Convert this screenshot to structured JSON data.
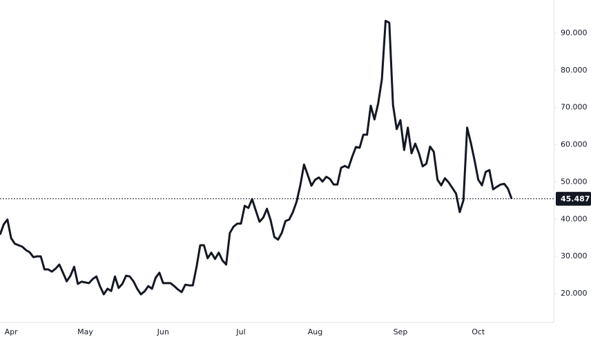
{
  "chart_data": {
    "type": "line",
    "categories": [
      null,
      null,
      null,
      "Apr",
      null,
      null,
      null,
      null,
      null,
      null,
      null,
      null,
      null,
      null,
      null,
      null,
      null,
      null,
      null,
      null,
      null,
      null,
      null,
      "May",
      null,
      null,
      null,
      null,
      null,
      null,
      null,
      null,
      null,
      null,
      null,
      null,
      null,
      null,
      null,
      null,
      null,
      null,
      null,
      null,
      "Jun",
      null,
      null,
      null,
      null,
      null,
      null,
      null,
      null,
      null,
      null,
      null,
      null,
      null,
      null,
      null,
      null,
      null,
      null,
      null,
      null,
      "Jul",
      null,
      null,
      null,
      null,
      null,
      null,
      null,
      null,
      null,
      null,
      null,
      null,
      null,
      null,
      null,
      null,
      null,
      null,
      null,
      "Aug",
      null,
      null,
      null,
      null,
      null,
      null,
      null,
      null,
      null,
      null,
      null,
      null,
      null,
      null,
      null,
      null,
      null,
      null,
      null,
      null,
      null,
      null,
      "Sep",
      null,
      null,
      null,
      null,
      null,
      null,
      null,
      null,
      null,
      null,
      null,
      null,
      null,
      null,
      null,
      null,
      null,
      null,
      null,
      null,
      "Oct",
      null,
      null,
      null,
      null,
      null,
      null,
      null,
      null,
      null
    ],
    "series": [
      {
        "color": "#131722",
        "values": [
          35.8,
          38.6,
          39.9,
          34.9,
          33.4,
          33,
          32.6,
          31.7,
          31.1,
          29.8,
          30,
          30,
          26.5,
          26.5,
          25.9,
          26.7,
          27.8,
          25.6,
          23.3,
          24.8,
          27.2,
          22.6,
          23.2,
          23,
          22.8,
          23.9,
          24.6,
          21.9,
          19.8,
          21.3,
          20.7,
          24.6,
          21.5,
          22.6,
          24.8,
          24.6,
          23.3,
          21.3,
          19.8,
          20.6,
          22,
          21.3,
          24.3,
          25.6,
          22.8,
          22.8,
          22.8,
          22,
          21.1,
          20.4,
          22.4,
          22.2,
          22.2,
          27.1,
          33,
          33,
          29.5,
          31,
          29.3,
          31,
          28.9,
          27.8,
          36.3,
          38,
          38.8,
          38.8,
          43.6,
          43,
          45.4,
          42.3,
          39.3,
          40.4,
          42.8,
          39.7,
          35.2,
          34.5,
          36.3,
          39.5,
          39.9,
          41.9,
          44.7,
          49.1,
          54.7,
          51.9,
          49,
          50.6,
          51.2,
          50.1,
          51.4,
          50.8,
          49.3,
          49.3,
          53.8,
          54.3,
          53.8,
          56.8,
          59.4,
          59.2,
          62.7,
          62.7,
          70.5,
          66.8,
          71.1,
          77.6,
          93.3,
          92.8,
          70.7,
          64.2,
          66.6,
          58.6,
          64.6,
          57.7,
          60.3,
          57.7,
          54.2,
          54.9,
          59.5,
          58.1,
          50.6,
          49.1,
          51,
          49.9,
          48.4,
          46.9,
          41.9,
          45.1,
          64.6,
          60.5,
          55.8,
          50.6,
          49.1,
          52.7,
          53.2,
          48,
          48.7,
          49.3,
          49.5,
          48.2,
          45.487
        ]
      }
    ],
    "ylim": [
      12.39,
      98.9
    ],
    "yticks": [
      {
        "value": 20,
        "label": "20.000"
      },
      {
        "value": 30,
        "label": "30.000"
      },
      {
        "value": 40,
        "label": "40.000"
      },
      {
        "value": 50,
        "label": "50.000"
      },
      {
        "value": 60,
        "label": "60.000"
      },
      {
        "value": 70,
        "label": "70.000"
      },
      {
        "value": 80,
        "label": "80.000"
      },
      {
        "value": 90,
        "label": "90.000"
      }
    ],
    "last_price": {
      "value": 45.487,
      "label": "45.487"
    }
  }
}
